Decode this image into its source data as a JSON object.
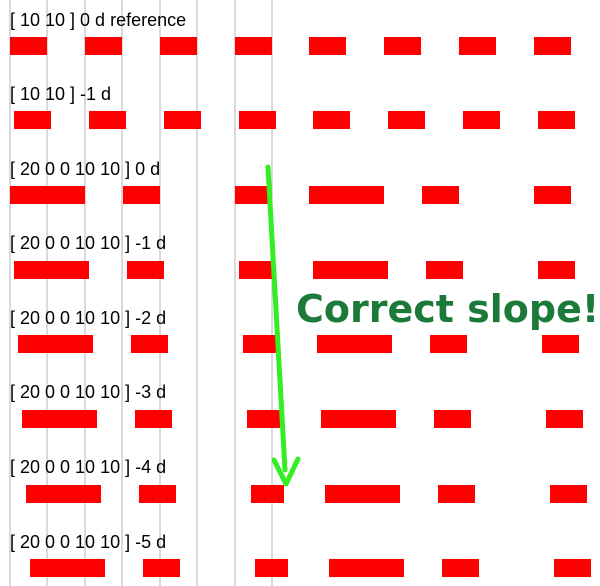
{
  "colors": {
    "dash": "#ff0000",
    "guide_line": "#b4b4b4",
    "arrow": "#33ee22",
    "callout_text": "#1b7a3a",
    "label_text": "#000000"
  },
  "guide_lines": {
    "count": 7
  },
  "rows": [
    {
      "label": "[ 10 10 ] 0 d reference"
    },
    {
      "label": "[ 10 10 ] -1 d"
    },
    {
      "label": "[ 20 0 0 10 10 ] 0 d"
    },
    {
      "label": "[ 20 0 0 10 10 ] -1 d"
    },
    {
      "label": "[ 20 0 0 10 10 ] -2 d"
    },
    {
      "label": "[ 20 0 0 10 10 ] -3 d"
    },
    {
      "label": "[ 20 0 0 10 10 ] -4 d"
    },
    {
      "label": "[ 20 0 0 10 10 ] -5 d"
    }
  ],
  "callout": {
    "text": "Correct slope!",
    "icon": "arrow-down-icon"
  }
}
